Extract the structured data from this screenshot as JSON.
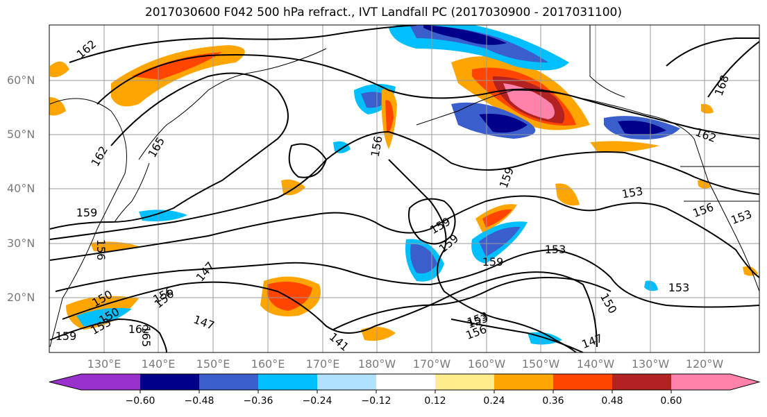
{
  "title": "2017030600 F042 500 hPa refract., IVT Landfall PC (2017030900 - 2017031100)",
  "map": {
    "lat_ticks": [
      "60°N",
      "50°N",
      "40°N",
      "30°N",
      "20°N"
    ],
    "lon_ticks": [
      "130°E",
      "140°E",
      "150°E",
      "160°E",
      "170°E",
      "180°W",
      "170°W",
      "160°W",
      "150°W",
      "140°W",
      "130°W",
      "120°W"
    ],
    "contour_labels": [
      "162",
      "165",
      "162",
      "159",
      "156",
      "153",
      "150",
      "147",
      "156",
      "162",
      "159",
      "165",
      "156",
      "159",
      "159",
      "159",
      "159",
      "153",
      "153",
      "153",
      "153",
      "156",
      "153",
      "150",
      "168",
      "162",
      "141",
      "147",
      "150",
      "156",
      "147",
      "153",
      "156"
    ]
  },
  "colorbar": {
    "tick_labels": [
      "−0.60",
      "−0.48",
      "−0.36",
      "−0.24",
      "−0.12",
      "0.12",
      "0.24",
      "0.36",
      "0.48",
      "0.60"
    ],
    "colors": [
      "#9932cc",
      "#00008b",
      "#3a5fcd",
      "#00bfff",
      "#b0e2ff",
      "#ffffff",
      "#ffec8b",
      "#ffa500",
      "#ff4500",
      "#b22222",
      "#ff82ab"
    ]
  }
}
